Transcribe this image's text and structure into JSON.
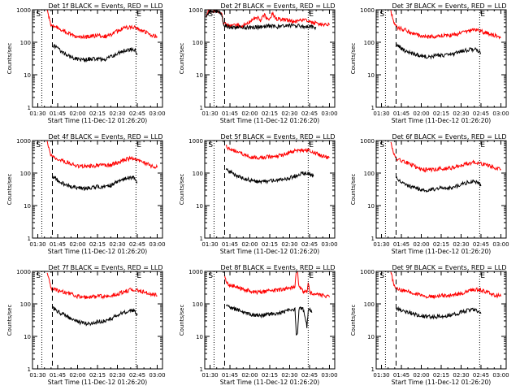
{
  "figure": {
    "x_title": "Start Time (11-Dec-12 01:26:20)",
    "y_title": "Counts/sec",
    "marker_s": "S",
    "marker_e": "E"
  },
  "chart_data": [
    {
      "type": "line",
      "title": "Det 1f BLACK = Events, RED = LLD",
      "xlabel": "Start Time (11-Dec-12 01:26:20)",
      "ylabel": "Counts/sec",
      "y_scale": "log",
      "ylim": [
        1,
        1000
      ],
      "y_ticks": [
        "1",
        "10",
        "100",
        "1000"
      ],
      "x_ticks": [
        "01:30",
        "01:45",
        "02:00",
        "02:15",
        "02:30",
        "02:45",
        "03:00"
      ],
      "xlim_minutes": [
        86,
        184
      ],
      "dotted_lines_minutes": [
        93,
        164
      ],
      "dashed_line_minutes": [
        101
      ],
      "series": [
        {
          "color": "#ff0000",
          "x_min": [
            97,
            98,
            99,
            100,
            102,
            105,
            110,
            115,
            120,
            125,
            130,
            135,
            140,
            145,
            150,
            155,
            160,
            165,
            170,
            175,
            180
          ],
          "values": [
            1000,
            700,
            450,
            350,
            320,
            280,
            220,
            170,
            140,
            140,
            155,
            160,
            150,
            170,
            220,
            270,
            300,
            270,
            220,
            170,
            150
          ]
        },
        {
          "color": "#000000",
          "x_min": [
            101,
            103,
            106,
            110,
            115,
            120,
            125,
            130,
            135,
            140,
            145,
            150,
            155,
            160,
            163,
            165
          ],
          "values": [
            80,
            75,
            60,
            45,
            35,
            30,
            28,
            32,
            30,
            30,
            35,
            45,
            55,
            60,
            58,
            45
          ]
        }
      ]
    },
    {
      "type": "line",
      "title": "Det 2f BLACK = Events, RED = LLD",
      "xlabel": "Start Time (11-Dec-12 01:26:20)",
      "ylabel": "Counts/sec",
      "y_scale": "log",
      "ylim": [
        1,
        1000
      ],
      "y_ticks": [
        "1",
        "10",
        "100",
        "1000"
      ],
      "x_ticks": [
        "01:30",
        "01:45",
        "02:00",
        "02:15",
        "02:30",
        "02:45",
        "03:00"
      ],
      "xlim_minutes": [
        86,
        184
      ],
      "dotted_lines_minutes": [
        93,
        164
      ],
      "dashed_line_minutes": [
        101
      ],
      "series": [
        {
          "color": "#ff0000",
          "x_min": [
            87,
            89,
            92,
            95,
            97,
            99,
            100,
            102,
            105,
            110,
            115,
            120,
            125,
            128,
            131,
            134,
            137,
            140,
            145,
            150,
            155,
            160,
            165,
            170,
            175,
            180
          ],
          "values": [
            650,
            900,
            950,
            950,
            900,
            700,
            400,
            350,
            330,
            320,
            320,
            420,
            600,
            480,
            720,
            470,
            750,
            520,
            500,
            450,
            430,
            500,
            430,
            380,
            360,
            340
          ]
        },
        {
          "color": "#000000",
          "x_min": [
            87,
            89,
            92,
            95,
            97,
            99,
            100,
            102,
            105,
            110,
            115,
            120,
            125,
            130,
            135,
            140,
            145,
            150,
            155,
            160,
            165,
            170
          ],
          "values": [
            600,
            850,
            900,
            900,
            850,
            650,
            350,
            320,
            300,
            290,
            290,
            280,
            290,
            300,
            320,
            300,
            310,
            330,
            320,
            310,
            300,
            290
          ]
        }
      ]
    },
    {
      "type": "line",
      "title": "Det 3f BLACK = Events, RED = LLD",
      "xlabel": "Start Time (11-Dec-12 01:26:20)",
      "ylabel": "Counts/sec",
      "y_scale": "log",
      "ylim": [
        1,
        1000
      ],
      "y_ticks": [
        "1",
        "10",
        "100",
        "1000"
      ],
      "x_ticks": [
        "01:30",
        "01:45",
        "02:00",
        "02:15",
        "02:30",
        "02:45",
        "03:00"
      ],
      "xlim_minutes": [
        86,
        184
      ],
      "dotted_lines_minutes": [
        93,
        164
      ],
      "dashed_line_minutes": [
        101
      ],
      "series": [
        {
          "color": "#ff0000",
          "x_min": [
            97,
            98,
            99,
            100,
            102,
            105,
            110,
            115,
            120,
            125,
            130,
            135,
            140,
            145,
            150,
            155,
            160,
            165,
            170,
            175,
            180
          ],
          "values": [
            1000,
            650,
            450,
            330,
            280,
            260,
            220,
            180,
            150,
            145,
            150,
            160,
            160,
            170,
            190,
            220,
            240,
            220,
            190,
            160,
            140
          ]
        },
        {
          "color": "#000000",
          "x_min": [
            101,
            103,
            106,
            110,
            115,
            120,
            125,
            130,
            135,
            140,
            145,
            150,
            155,
            160,
            163,
            165
          ],
          "values": [
            90,
            75,
            60,
            50,
            42,
            38,
            35,
            38,
            40,
            40,
            45,
            52,
            58,
            60,
            55,
            45
          ]
        }
      ]
    },
    {
      "type": "line",
      "title": "Det 4f BLACK = Events, RED = LLD",
      "xlabel": "Start Time (11-Dec-12 01:26:20)",
      "ylabel": "Counts/sec",
      "y_scale": "log",
      "ylim": [
        1,
        1000
      ],
      "y_ticks": [
        "1",
        "10",
        "100",
        "1000"
      ],
      "x_ticks": [
        "01:30",
        "01:45",
        "02:00",
        "02:15",
        "02:30",
        "02:45",
        "03:00"
      ],
      "xlim_minutes": [
        86,
        184
      ],
      "dotted_lines_minutes": [
        93,
        164
      ],
      "dashed_line_minutes": [
        101
      ],
      "series": [
        {
          "color": "#ff0000",
          "x_min": [
            97,
            98,
            99,
            100,
            102,
            105,
            110,
            115,
            120,
            125,
            130,
            135,
            140,
            145,
            150,
            155,
            160,
            165,
            170,
            175,
            180
          ],
          "values": [
            1000,
            700,
            450,
            350,
            300,
            270,
            230,
            190,
            160,
            160,
            165,
            170,
            170,
            180,
            210,
            250,
            280,
            260,
            210,
            170,
            150
          ]
        },
        {
          "color": "#000000",
          "x_min": [
            101,
            103,
            106,
            110,
            115,
            120,
            125,
            130,
            135,
            140,
            145,
            150,
            155,
            160,
            163,
            165
          ],
          "values": [
            80,
            70,
            55,
            45,
            38,
            35,
            33,
            35,
            38,
            38,
            42,
            55,
            65,
            75,
            68,
            50
          ]
        }
      ]
    },
    {
      "type": "line",
      "title": "Det 5f BLACK = Events, RED = LLD",
      "xlabel": "Start Time (11-Dec-12 01:26:20)",
      "ylabel": "Counts/sec",
      "y_scale": "log",
      "ylim": [
        1,
        1000
      ],
      "y_ticks": [
        "1",
        "10",
        "100",
        "1000"
      ],
      "x_ticks": [
        "01:30",
        "01:45",
        "02:00",
        "02:15",
        "02:30",
        "02:45",
        "03:00"
      ],
      "xlim_minutes": [
        86,
        184
      ],
      "dotted_lines_minutes": [
        93,
        164
      ],
      "dashed_line_minutes": [
        101
      ],
      "series": [
        {
          "color": "#ff0000",
          "x_min": [
            102,
            105,
            110,
            115,
            120,
            125,
            130,
            135,
            140,
            145,
            150,
            155,
            160,
            165,
            170,
            175,
            180
          ],
          "values": [
            650,
            560,
            460,
            380,
            320,
            300,
            300,
            320,
            330,
            360,
            430,
            500,
            520,
            480,
            400,
            340,
            300
          ]
        },
        {
          "color": "#000000",
          "x_min": [
            102,
            105,
            110,
            115,
            120,
            125,
            130,
            135,
            140,
            145,
            150,
            155,
            160,
            165,
            168
          ],
          "values": [
            140,
            110,
            85,
            70,
            60,
            55,
            55,
            58,
            60,
            62,
            70,
            85,
            100,
            95,
            80
          ]
        }
      ]
    },
    {
      "type": "line",
      "title": "Det 6f BLACK = Events, RED = LLD",
      "xlabel": "Start Time (11-Dec-12 01:26:20)",
      "ylabel": "Counts/sec",
      "y_scale": "log",
      "ylim": [
        1,
        1000
      ],
      "y_ticks": [
        "1",
        "10",
        "100",
        "1000"
      ],
      "x_ticks": [
        "01:30",
        "01:45",
        "02:00",
        "02:15",
        "02:30",
        "02:45",
        "03:00"
      ],
      "xlim_minutes": [
        86,
        184
      ],
      "dotted_lines_minutes": [
        93,
        164
      ],
      "dashed_line_minutes": [
        101
      ],
      "series": [
        {
          "color": "#ff0000",
          "x_min": [
            97,
            98,
            99,
            100,
            102,
            105,
            110,
            115,
            120,
            125,
            130,
            135,
            140,
            145,
            150,
            155,
            160,
            165,
            170,
            175,
            180
          ],
          "values": [
            1000,
            650,
            420,
            320,
            270,
            240,
            200,
            160,
            130,
            125,
            130,
            140,
            140,
            150,
            170,
            200,
            220,
            200,
            170,
            150,
            130
          ]
        },
        {
          "color": "#000000",
          "x_min": [
            101,
            103,
            106,
            110,
            115,
            120,
            125,
            130,
            135,
            140,
            145,
            150,
            155,
            160,
            163,
            165
          ],
          "values": [
            70,
            60,
            48,
            40,
            35,
            32,
            30,
            32,
            35,
            35,
            38,
            45,
            52,
            55,
            50,
            40
          ]
        }
      ]
    },
    {
      "type": "line",
      "title": "Det 7f BLACK = Events, RED = LLD",
      "xlabel": "Start Time (11-Dec-12 01:26:20)",
      "ylabel": "Counts/sec",
      "y_scale": "log",
      "ylim": [
        1,
        1000
      ],
      "y_ticks": [
        "1",
        "10",
        "100",
        "1000"
      ],
      "x_ticks": [
        "01:30",
        "01:45",
        "02:00",
        "02:15",
        "02:30",
        "02:45",
        "03:00"
      ],
      "xlim_minutes": [
        86,
        184
      ],
      "dotted_lines_minutes": [
        93,
        164
      ],
      "dashed_line_minutes": [
        101
      ],
      "series": [
        {
          "color": "#ff0000",
          "x_min": [
            97,
            98,
            99,
            100,
            102,
            105,
            110,
            115,
            120,
            125,
            130,
            135,
            140,
            145,
            150,
            155,
            160,
            165,
            170,
            175,
            180
          ],
          "values": [
            1000,
            650,
            420,
            320,
            280,
            260,
            230,
            200,
            170,
            160,
            160,
            170,
            170,
            180,
            200,
            240,
            270,
            260,
            230,
            200,
            180
          ]
        },
        {
          "color": "#000000",
          "x_min": [
            101,
            103,
            106,
            110,
            115,
            120,
            125,
            130,
            135,
            140,
            145,
            150,
            155,
            160,
            163,
            165
          ],
          "values": [
            75,
            68,
            55,
            45,
            35,
            28,
            25,
            25,
            28,
            30,
            35,
            45,
            55,
            62,
            58,
            50
          ]
        }
      ]
    },
    {
      "type": "line",
      "title": "Det 8f BLACK = Events, RED = LLD",
      "xlabel": "Start Time (11-Dec-12 01:26:20)",
      "ylabel": "Counts/sec",
      "y_scale": "log",
      "ylim": [
        1,
        1000
      ],
      "y_ticks": [
        "1",
        "10",
        "100",
        "1000"
      ],
      "x_ticks": [
        "01:30",
        "01:45",
        "02:00",
        "02:15",
        "02:30",
        "02:45",
        "03:00"
      ],
      "xlim_minutes": [
        86,
        184
      ],
      "dotted_lines_minutes": [
        93,
        164
      ],
      "dashed_line_minutes": [
        101
      ],
      "series": [
        {
          "color": "#ff0000",
          "x_min": [
            101,
            102,
            105,
            110,
            115,
            120,
            125,
            130,
            135,
            140,
            145,
            150,
            154,
            155,
            156,
            157,
            160,
            163,
            164,
            165,
            170,
            175,
            180
          ],
          "values": [
            800,
            450,
            380,
            330,
            280,
            250,
            230,
            230,
            250,
            260,
            280,
            320,
            330,
            1000,
            1000,
            330,
            250,
            220,
            500,
            230,
            200,
            180,
            160
          ]
        },
        {
          "color": "#000000",
          "x_min": [
            102,
            105,
            110,
            115,
            120,
            125,
            130,
            135,
            140,
            145,
            150,
            154,
            155,
            156,
            157,
            160,
            163,
            164,
            165,
            167
          ],
          "values": [
            90,
            80,
            65,
            55,
            48,
            45,
            45,
            48,
            50,
            55,
            65,
            70,
            12,
            12,
            70,
            75,
            20,
            60,
            65,
            55
          ]
        }
      ]
    },
    {
      "type": "line",
      "title": "Det 9f BLACK = Events, RED = LLD",
      "xlabel": "Start Time (11-Dec-12 01:26:20)",
      "ylabel": "Counts/sec",
      "y_scale": "log",
      "ylim": [
        1,
        1000
      ],
      "y_ticks": [
        "1",
        "10",
        "100",
        "1000"
      ],
      "x_ticks": [
        "01:30",
        "01:45",
        "02:00",
        "02:15",
        "02:30",
        "02:45",
        "03:00"
      ],
      "xlim_minutes": [
        86,
        184
      ],
      "dotted_lines_minutes": [
        93,
        164
      ],
      "dashed_line_minutes": [
        101
      ],
      "series": [
        {
          "color": "#ff0000",
          "x_min": [
            97,
            98,
            99,
            100,
            102,
            105,
            110,
            115,
            120,
            125,
            130,
            135,
            140,
            145,
            150,
            155,
            160,
            165,
            170,
            175,
            180
          ],
          "values": [
            1000,
            650,
            420,
            320,
            280,
            260,
            240,
            210,
            180,
            170,
            170,
            180,
            180,
            190,
            210,
            250,
            280,
            260,
            220,
            190,
            170
          ]
        },
        {
          "color": "#000000",
          "x_min": [
            101,
            103,
            106,
            110,
            115,
            120,
            125,
            130,
            135,
            140,
            145,
            150,
            155,
            160,
            163,
            165
          ],
          "values": [
            75,
            70,
            62,
            55,
            48,
            42,
            40,
            40,
            42,
            44,
            48,
            55,
            62,
            65,
            60,
            50
          ]
        }
      ]
    }
  ]
}
